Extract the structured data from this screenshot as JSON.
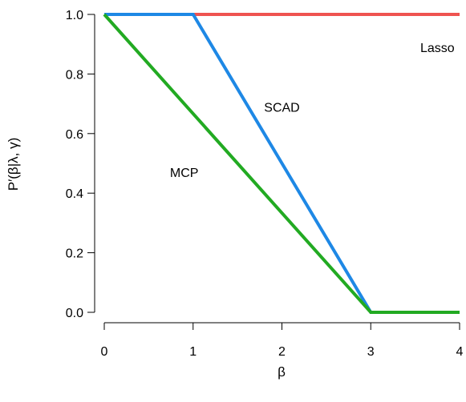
{
  "chart_data": {
    "type": "line",
    "xlabel": "β",
    "ylabel": "P′(β|λ, γ)",
    "xlim": [
      0,
      4
    ],
    "ylim": [
      0,
      1
    ],
    "x_ticks": [
      "0",
      "1",
      "2",
      "3",
      "4"
    ],
    "y_ticks": [
      "0.0",
      "0.2",
      "0.4",
      "0.6",
      "0.8",
      "1.0"
    ],
    "grid": false,
    "series": [
      {
        "name": "Lasso",
        "color": "#ef5350",
        "points": [
          [
            0,
            1
          ],
          [
            4,
            1
          ]
        ],
        "label_at": [
          3.75,
          0.89
        ]
      },
      {
        "name": "SCAD",
        "color": "#1e88e5",
        "points": [
          [
            0,
            1
          ],
          [
            1,
            1
          ],
          [
            3,
            0
          ],
          [
            4,
            0
          ]
        ],
        "label_at": [
          2.0,
          0.69
        ]
      },
      {
        "name": "MCP",
        "color": "#22aa22",
        "points": [
          [
            0,
            1
          ],
          [
            3,
            0
          ],
          [
            4,
            0
          ]
        ],
        "label_at": [
          0.9,
          0.47
        ]
      }
    ]
  }
}
